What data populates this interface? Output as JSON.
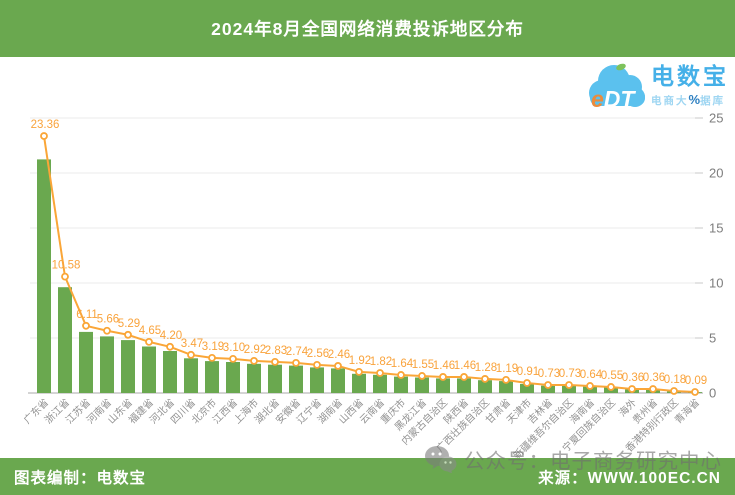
{
  "header": {
    "title": "2024年8月全国网络消费投诉地区分布"
  },
  "logo": {
    "cloud_text": "eDT",
    "brand": "电数宝",
    "subtitle_prefix": "电商大",
    "subtitle_percent": "%",
    "subtitle_suffix": "据库"
  },
  "watermark": {
    "text": "公众号：电子商务研究中心",
    "icon": "wechat-icon"
  },
  "footer": {
    "credit": "图表编制：电数宝",
    "source": "来源：WWW.100EC.CN"
  },
  "colors": {
    "theme_green": "#6aa84f",
    "bar_green": "#6aa84f",
    "line_orange": "#faa638",
    "value_label_orange": "#f9a33c",
    "axis_text_gray": "#7d7d7d",
    "category_text_gray": "#929292",
    "gridline_gray": "#ebebeb",
    "baseline_gray": "#a8a8a8",
    "logo_blue": "#45b0e8",
    "cloud_blue": "#5bc1ee"
  },
  "chart_data": {
    "type": "bar",
    "overlay": "line",
    "title": "2024年8月全国网络消费投诉地区分布",
    "categories": [
      "广东省",
      "浙江省",
      "江苏省",
      "河南省",
      "山东省",
      "福建省",
      "河北省",
      "四川省",
      "北京市",
      "江西省",
      "上海市",
      "湖北省",
      "安徽省",
      "辽宁省",
      "湖南省",
      "山西省",
      "云南省",
      "重庆市",
      "黑龙江省",
      "内蒙古自治区",
      "陕西省",
      "广西壮族自治区",
      "甘肃省",
      "天津市",
      "吉林省",
      "新疆维吾尔自治区",
      "海南省",
      "宁夏回族自治区",
      "海外",
      "贵州省",
      "香港特别行政区",
      "青海省"
    ],
    "values": [
      23.36,
      10.58,
      6.11,
      5.66,
      5.29,
      4.65,
      4.2,
      3.47,
      3.19,
      3.1,
      2.92,
      2.83,
      2.74,
      2.56,
      2.46,
      1.92,
      1.82,
      1.64,
      1.55,
      1.46,
      1.46,
      1.28,
      1.19,
      0.91,
      0.73,
      0.73,
      0.64,
      0.55,
      0.36,
      0.36,
      0.18,
      0.09
    ],
    "value_labels_shown": true,
    "value_label_format": "two_decimals",
    "xlabel": "",
    "ylabel": "",
    "y_axis_side": "right",
    "ylim": [
      0,
      25
    ],
    "yticks": [
      0,
      5,
      10,
      15,
      20,
      25
    ],
    "grid": "horizontal",
    "category_label_rotation_deg": 45
  }
}
